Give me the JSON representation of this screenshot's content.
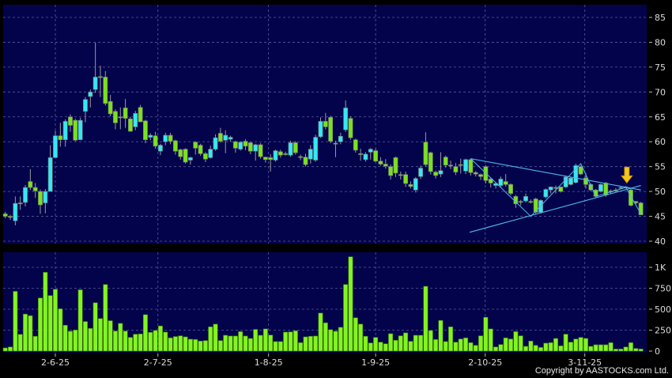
{
  "chart_data": [
    {
      "type": "candlestick",
      "panel": "price",
      "ylim": [
        40,
        87
      ],
      "y_ticks": [
        40,
        45,
        50,
        55,
        60,
        65,
        70,
        75,
        80,
        85
      ],
      "grid": true,
      "x_ticks": [
        {
          "label": "2-6-25",
          "index": 10
        },
        {
          "label": "2-7-25",
          "index": 30.5
        },
        {
          "label": "1-8-25",
          "index": 52.6
        },
        {
          "label": "1-9-25",
          "index": 74
        },
        {
          "label": "2-10-25",
          "index": 95.9
        },
        {
          "label": "3-11-25",
          "index": 115.8
        }
      ],
      "up_color": "#35e8f2",
      "down_color": "#7ae21c",
      "ohlc": [
        [
          45.5,
          45.9,
          44.6,
          45.0
        ],
        [
          45.0,
          45.3,
          44.3,
          44.8
        ],
        [
          44.1,
          49.0,
          43.2,
          47.6
        ],
        [
          47.7,
          49.0,
          46.3,
          47.7
        ],
        [
          47.8,
          51.3,
          47.0,
          50.8
        ],
        [
          52.0,
          54.5,
          50.3,
          50.8
        ],
        [
          50.8,
          51.7,
          48.7,
          50.1
        ],
        [
          50.0,
          50.4,
          45.5,
          47.3
        ],
        [
          47.7,
          50.5,
          45.6,
          50.0
        ],
        [
          50.0,
          59.3,
          50.0,
          56.8
        ],
        [
          56.8,
          62.2,
          56.8,
          61.2
        ],
        [
          61.2,
          63.8,
          59.0,
          60.4
        ],
        [
          60.4,
          64.5,
          59.0,
          64.1
        ],
        [
          65.0,
          65.5,
          62.0,
          63.3
        ],
        [
          64.3,
          64.6,
          60.1,
          60.3
        ],
        [
          60.4,
          64.8,
          60.3,
          64.3
        ],
        [
          66.1,
          69.0,
          63.9,
          68.5
        ],
        [
          69.1,
          70.5,
          66.9,
          70.0
        ],
        [
          70.5,
          79.9,
          69.8,
          73.0
        ],
        [
          73.1,
          75.3,
          69.0,
          73.1
        ],
        [
          73.0,
          74.2,
          67.3,
          67.7
        ],
        [
          68.1,
          69.4,
          65.1,
          65.6
        ],
        [
          66.1,
          66.5,
          62.5,
          63.8
        ],
        [
          65.0,
          66.9,
          62.5,
          65.0
        ],
        [
          66.8,
          68.6,
          62.8,
          64.7
        ],
        [
          64.6,
          65.0,
          62.0,
          62.1
        ],
        [
          63.0,
          66.2,
          62.3,
          65.7
        ],
        [
          66.9,
          67.4,
          64.0,
          64.0
        ],
        [
          64.2,
          64.4,
          59.7,
          60.4
        ],
        [
          60.9,
          61.7,
          60.3,
          61.3
        ],
        [
          61.2,
          62.0,
          58.6,
          59.1
        ],
        [
          58.1,
          59.6,
          57.3,
          59.3
        ],
        [
          60.0,
          61.8,
          59.3,
          61.3
        ],
        [
          61.3,
          61.8,
          59.5,
          60.1
        ],
        [
          60.2,
          60.4,
          57.4,
          58.1
        ],
        [
          58.4,
          58.6,
          56.4,
          57.0
        ],
        [
          58.5,
          58.7,
          55.6,
          55.9
        ],
        [
          56.3,
          57.0,
          55.4,
          56.8
        ],
        [
          59.9,
          60.1,
          57.4,
          58.7
        ],
        [
          59.3,
          59.6,
          57.2,
          57.6
        ],
        [
          57.6,
          57.9,
          55.9,
          56.5
        ],
        [
          56.8,
          59.2,
          56.6,
          58.5
        ],
        [
          58.5,
          61.5,
          58.2,
          60.8
        ],
        [
          61.7,
          62.8,
          59.8,
          60.1
        ],
        [
          60.3,
          62.3,
          57.7,
          61.3
        ],
        [
          60.5,
          61.2,
          60.0,
          60.9
        ],
        [
          60.0,
          60.2,
          57.8,
          58.7
        ],
        [
          58.5,
          60.1,
          58.2,
          59.9
        ],
        [
          60.1,
          60.5,
          58.3,
          59.1
        ],
        [
          59.8,
          60.0,
          57.5,
          58.1
        ],
        [
          58.1,
          59.6,
          56.2,
          59.4
        ],
        [
          59.4,
          59.7,
          56.6,
          57.0
        ],
        [
          56.9,
          57.0,
          55.8,
          56.4
        ],
        [
          56.8,
          57.5,
          54.0,
          56.4
        ],
        [
          56.3,
          58.4,
          56.0,
          58.2
        ],
        [
          58.0,
          58.4,
          56.8,
          57.3
        ],
        [
          57.6,
          58.0,
          57.2,
          57.6
        ],
        [
          57.3,
          60.2,
          57.0,
          59.8
        ],
        [
          59.8,
          60.1,
          57.4,
          57.8
        ],
        [
          57.0,
          57.4,
          56.3,
          57.0
        ],
        [
          56.9,
          57.6,
          55.0,
          55.4
        ],
        [
          56.5,
          59.3,
          55.6,
          58.5
        ],
        [
          56.3,
          61.4,
          56.0,
          60.9
        ],
        [
          61.0,
          64.9,
          60.8,
          64.1
        ],
        [
          64.1,
          65.8,
          62.5,
          63.0
        ],
        [
          64.9,
          65.2,
          59.7,
          60.1
        ],
        [
          59.7,
          60.2,
          56.9,
          59.7
        ],
        [
          60.0,
          61.8,
          59.5,
          61.1
        ],
        [
          62.4,
          68.3,
          62.0,
          66.8
        ],
        [
          64.7,
          65.1,
          60.4,
          60.8
        ],
        [
          60.4,
          60.6,
          57.8,
          58.3
        ],
        [
          57.6,
          58.6,
          56.2,
          57.6
        ],
        [
          56.4,
          57.9,
          56.0,
          57.5
        ],
        [
          57.9,
          58.7,
          56.4,
          58.5
        ],
        [
          58.2,
          58.6,
          55.9,
          56.1
        ],
        [
          56.1,
          56.9,
          55.2,
          55.5
        ],
        [
          55.5,
          56.5,
          54.6,
          55.1
        ],
        [
          55.0,
          55.4,
          52.4,
          53.2
        ],
        [
          56.8,
          57.0,
          52.9,
          53.7
        ],
        [
          53.4,
          54.0,
          52.4,
          53.4
        ],
        [
          53.4,
          54.0,
          50.9,
          51.6
        ],
        [
          51.4,
          52.0,
          50.6,
          51.0
        ],
        [
          50.3,
          52.9,
          49.8,
          52.6
        ],
        [
          53.0,
          55.2,
          52.5,
          54.7
        ],
        [
          59.9,
          61.9,
          55.0,
          55.4
        ],
        [
          57.8,
          58.0,
          53.4,
          54.0
        ],
        [
          53.9,
          54.2,
          52.6,
          53.2
        ],
        [
          53.5,
          57.9,
          52.9,
          54.2
        ],
        [
          56.9,
          57.2,
          54.8,
          55.3
        ],
        [
          55.3,
          56.2,
          54.5,
          55.3
        ],
        [
          55.0,
          55.7,
          53.3,
          53.9
        ],
        [
          55.4,
          56.6,
          53.6,
          55.4
        ],
        [
          54.1,
          56.6,
          53.5,
          56.4
        ],
        [
          56.4,
          56.6,
          53.2,
          53.8
        ],
        [
          53.8,
          54.1,
          53.0,
          53.5
        ],
        [
          53.4,
          53.6,
          52.3,
          53.0
        ],
        [
          55.0,
          55.3,
          51.6,
          52.2
        ],
        [
          52.5,
          52.8,
          50.8,
          51.7
        ],
        [
          51.2,
          51.9,
          50.6,
          51.6
        ],
        [
          51.2,
          53.0,
          50.8,
          52.5
        ],
        [
          52.0,
          53.5,
          51.0,
          51.4
        ],
        [
          51.4,
          51.6,
          49.2,
          49.6
        ],
        [
          49.0,
          49.3,
          46.7,
          47.5
        ],
        [
          48.0,
          48.3,
          47.2,
          48.0
        ],
        [
          48.1,
          49.6,
          47.8,
          49.0
        ],
        [
          48.0,
          48.4,
          47.6,
          48.0
        ],
        [
          48.5,
          48.7,
          45.5,
          45.8
        ],
        [
          45.8,
          48.4,
          45.6,
          48.2
        ],
        [
          48.9,
          50.6,
          48.6,
          50.4
        ],
        [
          50.3,
          51.0,
          49.6,
          50.9
        ],
        [
          50.8,
          51.2,
          49.6,
          50.8
        ],
        [
          50.9,
          51.0,
          49.8,
          50.0
        ],
        [
          50.9,
          53.2,
          50.7,
          52.9
        ],
        [
          51.4,
          52.9,
          51.2,
          52.7
        ],
        [
          51.8,
          55.6,
          51.6,
          55.2
        ],
        [
          55.0,
          55.2,
          53.3,
          53.5
        ],
        [
          52.7,
          53.7,
          50.6,
          51.4
        ],
        [
          51.4,
          51.6,
          50.0,
          50.3
        ],
        [
          50.3,
          50.5,
          48.8,
          49.0
        ],
        [
          50.0,
          51.6,
          49.8,
          51.4
        ],
        [
          51.7,
          51.9,
          48.9,
          49.3
        ],
        [
          50.1,
          50.4,
          49.6,
          50.1
        ],
        [
          50.3,
          50.7,
          49.9,
          50.3
        ],
        [
          50.8,
          51.1,
          50.5,
          50.8
        ],
        [
          50.9,
          51.1,
          50.6,
          50.9
        ],
        [
          50.3,
          50.6,
          47.0,
          47.2
        ],
        [
          48.0,
          48.1,
          47.4,
          47.7
        ],
        [
          47.7,
          47.9,
          45.3,
          45.3
        ]
      ],
      "annotations": {
        "trend_line_color": "#4fb8ec",
        "trend_lines": [
          {
            "from": {
              "index": 93,
              "price": 56.6
            },
            "to": {
              "index": 127,
              "price": 50.3
            }
          },
          {
            "from": {
              "index": 92.8,
              "price": 41.8
            },
            "to": {
              "index": 127,
              "price": 51.2
            }
          }
        ],
        "zigzag": [
          {
            "index": 93,
            "price": 56.6
          },
          {
            "index": 105,
            "price": 45.0
          },
          {
            "index": 115,
            "price": 55.6
          },
          {
            "index": 118,
            "price": 49.0
          },
          {
            "index": 124,
            "price": 50.8
          },
          {
            "index": 127,
            "price": 45.5
          }
        ],
        "signal_arrow": {
          "icon": "down-arrow",
          "index": 124.2,
          "price": 51.4,
          "color": "#f5c518"
        }
      }
    },
    {
      "type": "bar",
      "panel": "volume",
      "ylim": [
        0,
        1200
      ],
      "y_ticks": [
        {
          "value": 0,
          "label": "0"
        },
        {
          "value": 250,
          "label": "250"
        },
        {
          "value": 500,
          "label": "500"
        },
        {
          "value": 750,
          "label": "750"
        },
        {
          "value": 1000,
          "label": "1K"
        }
      ],
      "grid": true,
      "bar_color": "#84f421",
      "values": [
        38,
        50,
        713,
        200,
        442,
        423,
        177,
        634,
        940,
        663,
        738,
        505,
        309,
        237,
        252,
        732,
        353,
        271,
        577,
        388,
        795,
        363,
        240,
        331,
        240,
        164,
        202,
        205,
        435,
        224,
        246,
        300,
        227,
        158,
        174,
        183,
        170,
        142,
        139,
        120,
        126,
        290,
        322,
        126,
        189,
        180,
        180,
        233,
        180,
        151,
        259,
        189,
        265,
        192,
        114,
        114,
        227,
        230,
        243,
        101,
        170,
        177,
        180,
        454,
        338,
        256,
        237,
        284,
        795,
        1126,
        398,
        322,
        177,
        98,
        164,
        107,
        88,
        208,
        129,
        183,
        218,
        117,
        189,
        189,
        773,
        246,
        139,
        366,
        114,
        290,
        107,
        145,
        158,
        101,
        69,
        183,
        404,
        265,
        50,
        79,
        158,
        145,
        233,
        183,
        57,
        120,
        69,
        44,
        95,
        101,
        151,
        63,
        202,
        107,
        145,
        164,
        151,
        57,
        76,
        76,
        76,
        101,
        25,
        25,
        50,
        101,
        32,
        25
      ]
    }
  ],
  "copyright": "Copyright by AASTOCKS.com Ltd."
}
